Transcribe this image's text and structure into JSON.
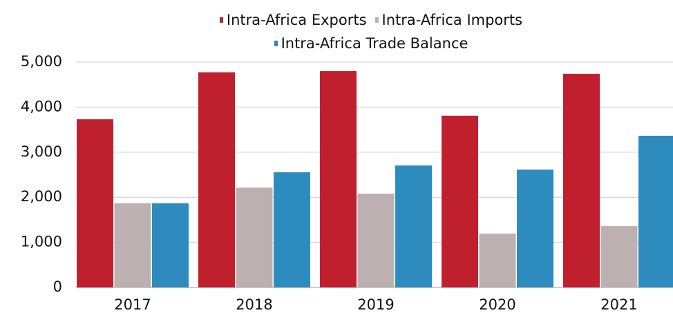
{
  "chart_data": {
    "type": "bar",
    "categories": [
      "2017",
      "2018",
      "2019",
      "2020",
      "2021"
    ],
    "series": [
      {
        "name": "Intra-Africa Exports",
        "color": "#c0202e",
        "values": [
          3730,
          4770,
          4800,
          3810,
          4740
        ]
      },
      {
        "name": "Intra-Africa Imports",
        "color": "#bdb0b1",
        "values": [
          1865,
          2215,
          2080,
          1195,
          1360
        ]
      },
      {
        "name": "Intra-Africa Trade Balance",
        "color": "#2e8bbe",
        "values": [
          1865,
          2555,
          2705,
          2615,
          3365
        ]
      }
    ],
    "ylim": [
      0,
      5000
    ],
    "yticks": [
      0,
      {
        "value": 1000,
        "label": "1,000"
      },
      {
        "value": 2000,
        "label": "2,000"
      },
      {
        "value": 3000,
        "label": "3,000"
      },
      {
        "value": 4000,
        "label": "4,000"
      },
      {
        "value": 5000,
        "label": "5,000"
      }
    ],
    "grid": true,
    "legend": "top"
  }
}
